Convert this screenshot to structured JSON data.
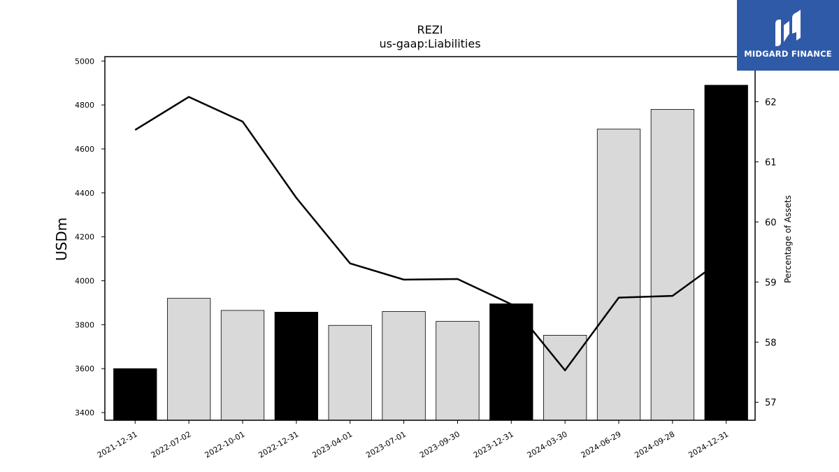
{
  "brand": {
    "name": "MIDGARD FINANCE",
    "color": "#2f5aa8",
    "icon": "midgard-finance-logo-icon"
  },
  "chart_data": {
    "type": "bar",
    "title": "REZI",
    "subtitle": "us-gaap:Liabilities",
    "ylabel": "USDm",
    "y2label": "Percentage of Assets",
    "categories": [
      "2021-12-31",
      "2022-07-02",
      "2022-10-01",
      "2022-12-31",
      "2023-04-01",
      "2023-07-01",
      "2023-09-30",
      "2023-12-31",
      "2024-03-30",
      "2024-06-29",
      "2024-09-28",
      "2024-12-31"
    ],
    "series": [
      {
        "values": [
          3600,
          3920,
          3865,
          3857,
          3797,
          3860,
          3815,
          3895,
          3752,
          4690,
          4780,
          4890
        ],
        "bar_colors": [
          "#000000",
          "#d9d9d9",
          "#d9d9d9",
          "#000000",
          "#d9d9d9",
          "#d9d9d9",
          "#d9d9d9",
          "#000000",
          "#d9d9d9",
          "#d9d9d9",
          "#d9d9d9",
          "#000000"
        ]
      },
      {
        "type": "line",
        "axis": "right",
        "values": [
          61.53,
          62.08,
          61.67,
          60.4,
          59.31,
          59.04,
          59.05,
          58.63,
          57.53,
          58.74,
          58.77,
          59.42
        ],
        "color": "#000000"
      }
    ],
    "ylim": [
      3365,
      5020
    ],
    "yticks": [
      3400,
      3600,
      3800,
      4000,
      4200,
      4400,
      4600,
      4800,
      5000
    ],
    "y2lim": [
      56.7,
      62.75
    ],
    "y2ticks": [
      57,
      58,
      59,
      60,
      61,
      62
    ],
    "grid": false,
    "legend": "none"
  }
}
